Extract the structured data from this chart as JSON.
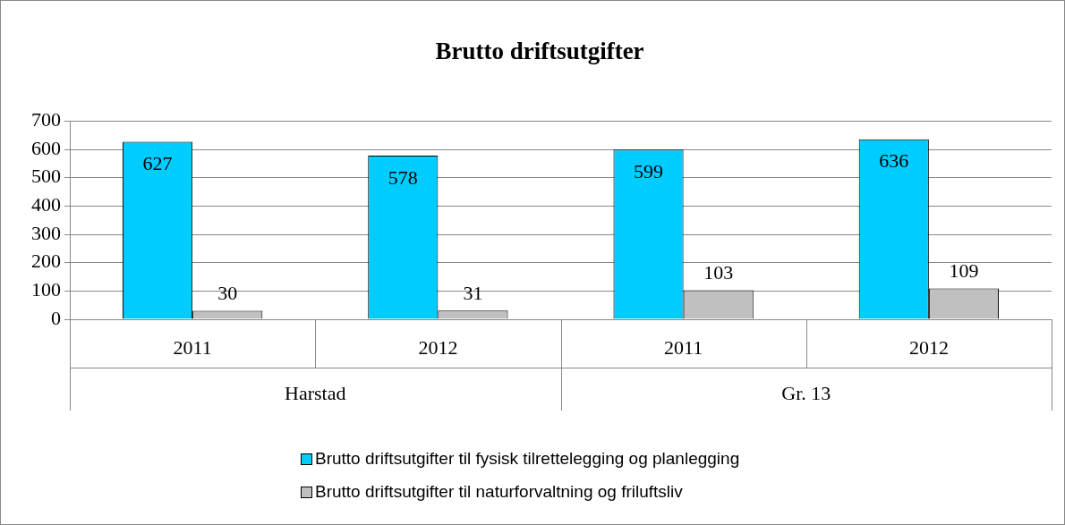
{
  "chart_data": {
    "type": "bar",
    "title": "Brutto driftsutgifter",
    "categories": [
      "2011",
      "2012",
      "2011",
      "2012"
    ],
    "annotations": [
      "Harstad",
      "Gr. 13"
    ],
    "series": [
      {
        "name": "Brutto driftsutgifter til fysisk tilrettelegging og planlegging",
        "color": "#00ccff",
        "values": [
          627,
          578,
          599,
          636
        ]
      },
      {
        "name": "Brutto driftsutgifter til naturforvaltning og friluftsliv",
        "color": "#c0c0c0",
        "values": [
          30,
          31,
          103,
          109
        ]
      }
    ],
    "ylim": [
      0,
      700
    ],
    "yticks": [
      0,
      100,
      200,
      300,
      400,
      500,
      600,
      700
    ],
    "grid": "y",
    "legend": "bottom",
    "data_labels": true
  }
}
